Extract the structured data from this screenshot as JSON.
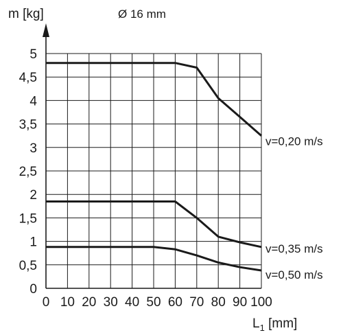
{
  "chart_data": {
    "type": "line",
    "title": "Ø 16 mm",
    "ylabel": "m [kg]",
    "xlabel_main": "L",
    "xlabel_sub": "1",
    "xlabel_unit": " [mm]",
    "xlim": [
      0,
      100
    ],
    "ylim": [
      0,
      5
    ],
    "xticks": [
      "0",
      "10",
      "20",
      "30",
      "40",
      "50",
      "60",
      "70",
      "80",
      "90",
      "100"
    ],
    "yticks": [
      "0",
      "0,5",
      "1",
      "1,5",
      "2",
      "2,5",
      "3",
      "3,5",
      "4",
      "4,5",
      "5"
    ],
    "grid": true,
    "series": [
      {
        "name": "v=0,20 m/s",
        "x": [
          0,
          60,
          70,
          80,
          90,
          100
        ],
        "y": [
          4.8,
          4.8,
          4.7,
          4.05,
          3.65,
          3.25
        ]
      },
      {
        "name": "v=0,35 m/s",
        "x": [
          0,
          60,
          70,
          80,
          90,
          100
        ],
        "y": [
          1.85,
          1.85,
          1.5,
          1.1,
          0.98,
          0.88
        ]
      },
      {
        "name": "v=0,50 m/s",
        "x": [
          0,
          50,
          60,
          70,
          80,
          90,
          100
        ],
        "y": [
          0.88,
          0.88,
          0.83,
          0.7,
          0.55,
          0.45,
          0.38
        ]
      }
    ]
  }
}
